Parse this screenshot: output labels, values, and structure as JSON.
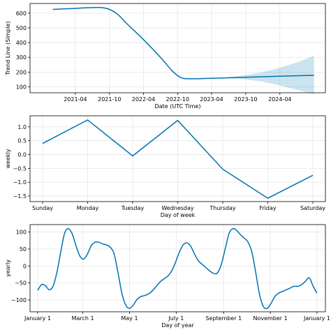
{
  "chart_data": [
    {
      "type": "line",
      "name": "trend",
      "xlabel": "Date (UTC Time)",
      "ylabel": "Trend Line (Simple)",
      "xlim": [
        "2020-08-01",
        "2024-12-01"
      ],
      "ylim": [
        60,
        665
      ],
      "x_tick_labels": [
        "2021-04",
        "2021-10",
        "2022-04",
        "2022-10",
        "2023-04",
        "2023-10",
        "2024-04"
      ],
      "x_ticks": [
        "2021-04-01",
        "2021-10-01",
        "2022-04-01",
        "2022-10-01",
        "2023-04-01",
        "2023-10-01",
        "2024-04-01"
      ],
      "y_ticks": [
        100,
        200,
        300,
        400,
        500,
        600
      ],
      "grid": true,
      "series": [
        {
          "x": [
            "2020-12-01",
            "2021-03-01",
            "2021-06-01",
            "2021-08-15",
            "2021-10-01",
            "2021-11-15",
            "2022-01-01",
            "2022-04-01",
            "2022-07-01",
            "2022-09-01",
            "2022-10-15",
            "2022-12-01",
            "2023-04-01",
            "2023-10-01",
            "2024-04-01",
            "2024-10-01"
          ],
          "y": [
            625,
            630,
            636,
            638,
            625,
            590,
            530,
            420,
            300,
            210,
            165,
            155,
            158,
            165,
            172,
            178
          ]
        }
      ],
      "uncertainty_band": {
        "x": [
          "2023-07-01",
          "2023-10-01",
          "2024-01-01",
          "2024-04-01",
          "2024-07-01",
          "2024-10-01"
        ],
        "lower": [
          160,
          150,
          135,
          110,
          80,
          50
        ],
        "upper": [
          168,
          180,
          200,
          230,
          265,
          310
        ]
      }
    },
    {
      "type": "line",
      "name": "weekly",
      "xlabel": "Day of week",
      "ylabel": "weekly",
      "categories": [
        "Sunday",
        "Monday",
        "Tuesday",
        "Wednesday",
        "Thursday",
        "Friday",
        "Saturday"
      ],
      "ylim": [
        -1.7,
        1.4
      ],
      "y_ticks": [
        -1.5,
        -1.0,
        -0.5,
        0.0,
        0.5,
        1.0
      ],
      "y_tick_labels": [
        "−1.5",
        "−1.0",
        "−0.5",
        "0.0",
        "0.5",
        "1.0"
      ],
      "grid": true,
      "series": [
        {
          "values": [
            0.4,
            1.25,
            -0.05,
            1.23,
            -0.53,
            -1.58,
            -0.75
          ]
        }
      ]
    },
    {
      "type": "line",
      "name": "yearly",
      "xlabel": "Day of year",
      "ylabel": "yearly",
      "xlim": [
        -10,
        376
      ],
      "ylim": [
        -135,
        122
      ],
      "x_tick_labels": [
        "January 1",
        "March 1",
        "May 1",
        "July 1",
        "September 1",
        "November 1",
        "January 1"
      ],
      "x_ticks": [
        0,
        59,
        120,
        181,
        243,
        304,
        365
      ],
      "y_ticks": [
        -100,
        -50,
        0,
        50,
        100
      ],
      "y_tick_labels": [
        "−100",
        "−50",
        "0",
        "50",
        "100"
      ],
      "grid": true,
      "series": [
        {
          "x": [
            0,
            5,
            10,
            15,
            20,
            25,
            30,
            35,
            40,
            45,
            50,
            55,
            60,
            65,
            70,
            75,
            80,
            85,
            90,
            95,
            100,
            105,
            110,
            115,
            120,
            125,
            130,
            135,
            140,
            145,
            150,
            155,
            160,
            165,
            170,
            175,
            180,
            185,
            190,
            195,
            200,
            205,
            210,
            215,
            220,
            225,
            230,
            235,
            240,
            245,
            250,
            255,
            260,
            265,
            270,
            275,
            280,
            285,
            290,
            295,
            300,
            305,
            310,
            315,
            320,
            325,
            330,
            335,
            340,
            345,
            350,
            355,
            360,
            365
          ],
          "y": [
            -72,
            -55,
            -58,
            -70,
            -60,
            -20,
            40,
            95,
            110,
            95,
            60,
            30,
            20,
            35,
            60,
            70,
            70,
            65,
            62,
            55,
            35,
            -20,
            -80,
            -115,
            -125,
            -115,
            -98,
            -90,
            -87,
            -82,
            -73,
            -60,
            -47,
            -38,
            -30,
            -15,
            10,
            40,
            62,
            68,
            58,
            35,
            15,
            5,
            -5,
            -15,
            -22,
            -20,
            5,
            50,
            95,
            110,
            105,
            92,
            82,
            70,
            40,
            -20,
            -85,
            -120,
            -125,
            -110,
            -90,
            -80,
            -75,
            -70,
            -65,
            -60,
            -60,
            -55,
            -45,
            -35,
            -60,
            -80
          ]
        }
      ]
    }
  ]
}
